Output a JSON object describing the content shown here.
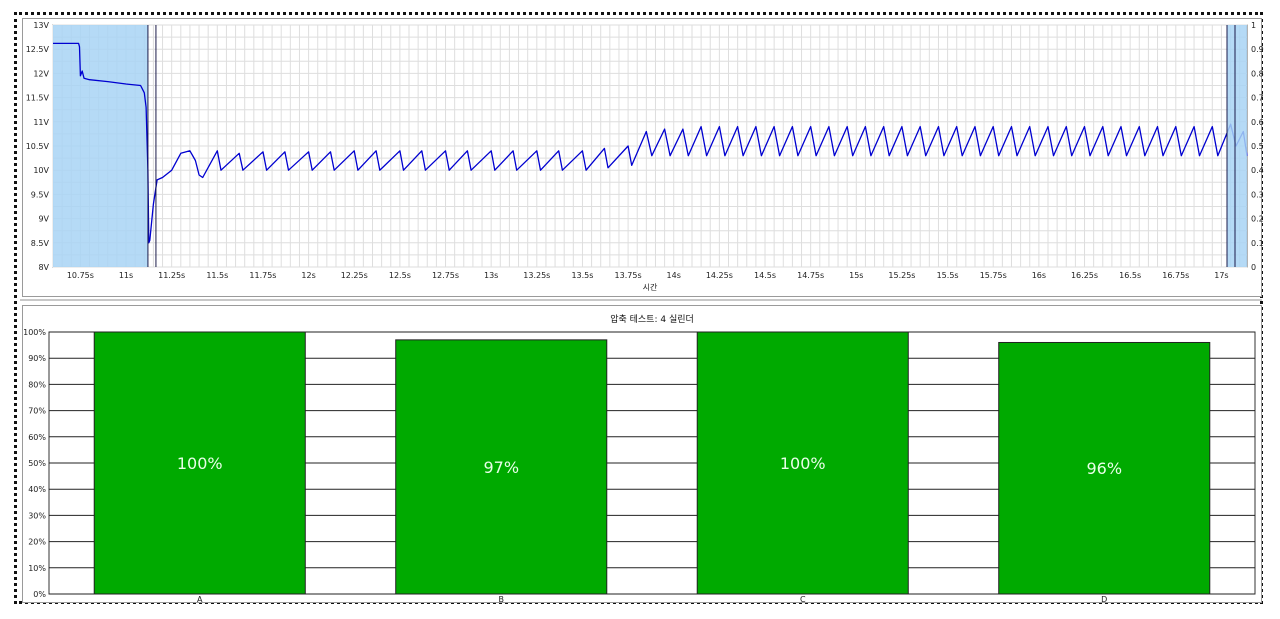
{
  "chart_data": [
    {
      "type": "line",
      "title": "",
      "xlabel": "시간",
      "ylabel": "",
      "y_ticks": [
        "13V",
        "12.5V",
        "12V",
        "11.5V",
        "11V",
        "10.5V",
        "10V",
        "9.5V",
        "9V",
        "8.5V",
        "8V"
      ],
      "y2_ticks": [
        "1",
        "0.9",
        "0.8",
        "0.7",
        "0.6",
        "0.5",
        "0.4",
        "0.3",
        "0.2",
        "0.1",
        "0"
      ],
      "x_ticks": [
        "10.75s",
        "11s",
        "11.25s",
        "11.5s",
        "11.75s",
        "12s",
        "12.25s",
        "12.5s",
        "12.75s",
        "13s",
        "13.25s",
        "13.5s",
        "13.75s",
        "14s",
        "14.25s",
        "14.5s",
        "14.75s",
        "15s",
        "15.25s",
        "15.5s",
        "15.75s",
        "16s",
        "16.25s",
        "16.5s",
        "16.75s",
        "17s"
      ],
      "xlim": [
        10.6,
        17.14
      ],
      "ylim": [
        8,
        13
      ],
      "highlight_range": [
        10.6,
        11.12
      ],
      "grid": true,
      "series": [
        {
          "color": "#0000d0",
          "points": [
            [
              10.6,
              12.62
            ],
            [
              10.74,
              12.62
            ],
            [
              10.745,
              12.55
            ],
            [
              10.75,
              11.95
            ],
            [
              10.76,
              12.05
            ],
            [
              10.77,
              11.9
            ],
            [
              10.8,
              11.87
            ],
            [
              10.9,
              11.83
            ],
            [
              11.0,
              11.78
            ],
            [
              11.08,
              11.75
            ],
            [
              11.1,
              11.6
            ],
            [
              11.11,
              11.3
            ],
            [
              11.12,
              10.0
            ],
            [
              11.125,
              8.5
            ],
            [
              11.13,
              8.55
            ],
            [
              11.15,
              9.3
            ],
            [
              11.17,
              9.8
            ],
            [
              11.2,
              9.85
            ],
            [
              11.25,
              10.0
            ],
            [
              11.3,
              10.35
            ],
            [
              11.35,
              10.4
            ],
            [
              11.38,
              10.2
            ],
            [
              11.4,
              9.9
            ],
            [
              11.42,
              9.85
            ],
            [
              11.5,
              10.4
            ],
            [
              11.52,
              10.0
            ],
            [
              11.62,
              10.35
            ],
            [
              11.64,
              10.0
            ],
            [
              11.75,
              10.38
            ],
            [
              11.77,
              10.0
            ],
            [
              11.87,
              10.38
            ],
            [
              11.89,
              10.0
            ],
            [
              12.0,
              10.38
            ],
            [
              12.02,
              10.0
            ],
            [
              12.12,
              10.38
            ],
            [
              12.14,
              10.0
            ],
            [
              12.25,
              10.4
            ],
            [
              12.27,
              10.0
            ],
            [
              12.37,
              10.4
            ],
            [
              12.39,
              10.0
            ],
            [
              12.5,
              10.4
            ],
            [
              12.52,
              10.0
            ],
            [
              12.62,
              10.4
            ],
            [
              12.64,
              10.0
            ],
            [
              12.75,
              10.4
            ],
            [
              12.77,
              10.0
            ],
            [
              12.87,
              10.4
            ],
            [
              12.89,
              10.0
            ],
            [
              13.0,
              10.4
            ],
            [
              13.02,
              10.0
            ],
            [
              13.12,
              10.4
            ],
            [
              13.14,
              10.0
            ],
            [
              13.25,
              10.4
            ],
            [
              13.27,
              10.0
            ],
            [
              13.37,
              10.4
            ],
            [
              13.39,
              10.0
            ],
            [
              13.5,
              10.4
            ],
            [
              13.52,
              10.0
            ],
            [
              13.62,
              10.45
            ],
            [
              13.64,
              10.05
            ],
            [
              13.75,
              10.5
            ],
            [
              13.77,
              10.1
            ],
            [
              13.85,
              10.8
            ],
            [
              13.88,
              10.3
            ],
            [
              13.95,
              10.85
            ],
            [
              13.98,
              10.3
            ],
            [
              14.05,
              10.85
            ],
            [
              14.08,
              10.3
            ],
            [
              14.15,
              10.9
            ],
            [
              14.18,
              10.3
            ],
            [
              14.25,
              10.9
            ],
            [
              14.28,
              10.3
            ],
            [
              14.35,
              10.9
            ],
            [
              14.38,
              10.3
            ],
            [
              14.45,
              10.9
            ],
            [
              14.48,
              10.3
            ],
            [
              14.55,
              10.9
            ],
            [
              14.58,
              10.3
            ],
            [
              14.65,
              10.9
            ],
            [
              14.68,
              10.3
            ],
            [
              14.75,
              10.9
            ],
            [
              14.78,
              10.3
            ],
            [
              14.85,
              10.9
            ],
            [
              14.88,
              10.3
            ],
            [
              14.95,
              10.9
            ],
            [
              14.98,
              10.3
            ],
            [
              15.05,
              10.9
            ],
            [
              15.08,
              10.3
            ],
            [
              15.15,
              10.9
            ],
            [
              15.18,
              10.3
            ],
            [
              15.25,
              10.9
            ],
            [
              15.28,
              10.3
            ],
            [
              15.35,
              10.9
            ],
            [
              15.38,
              10.3
            ],
            [
              15.45,
              10.9
            ],
            [
              15.48,
              10.3
            ],
            [
              15.55,
              10.9
            ],
            [
              15.58,
              10.3
            ],
            [
              15.65,
              10.9
            ],
            [
              15.68,
              10.3
            ],
            [
              15.75,
              10.9
            ],
            [
              15.78,
              10.3
            ],
            [
              15.85,
              10.9
            ],
            [
              15.88,
              10.3
            ],
            [
              15.95,
              10.9
            ],
            [
              15.98,
              10.3
            ],
            [
              16.05,
              10.9
            ],
            [
              16.08,
              10.3
            ],
            [
              16.15,
              10.9
            ],
            [
              16.18,
              10.3
            ],
            [
              16.25,
              10.9
            ],
            [
              16.28,
              10.3
            ],
            [
              16.35,
              10.9
            ],
            [
              16.38,
              10.3
            ],
            [
              16.45,
              10.9
            ],
            [
              16.48,
              10.3
            ],
            [
              16.55,
              10.9
            ],
            [
              16.58,
              10.3
            ],
            [
              16.65,
              10.9
            ],
            [
              16.68,
              10.3
            ],
            [
              16.75,
              10.9
            ],
            [
              16.78,
              10.3
            ],
            [
              16.85,
              10.9
            ],
            [
              16.88,
              10.3
            ],
            [
              16.95,
              10.9
            ],
            [
              16.98,
              10.3
            ],
            [
              17.05,
              10.95
            ],
            [
              17.08,
              10.5
            ],
            [
              17.12,
              10.8
            ],
            [
              17.14,
              10.3
            ]
          ]
        }
      ]
    },
    {
      "type": "bar",
      "title": "압축 테스트: 4 실린더",
      "categories": [
        "A",
        "B",
        "C",
        "D"
      ],
      "values": [
        100,
        97,
        100,
        96
      ],
      "value_labels": [
        "100%",
        "97%",
        "100%",
        "96%"
      ],
      "y_ticks": [
        "100%",
        "90%",
        "80%",
        "70%",
        "60%",
        "50%",
        "40%",
        "30%",
        "20%",
        "10%",
        "0%"
      ],
      "ylim": [
        0,
        100
      ],
      "grid": true,
      "bar_color": "#00aa00"
    }
  ]
}
